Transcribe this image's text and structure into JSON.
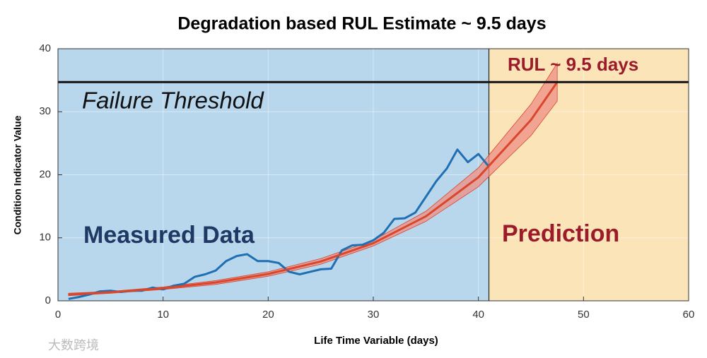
{
  "chart_data": {
    "type": "line",
    "title": "Degradation based RUL Estimate ~ 9.5 days",
    "x_label": "Life Time Variable (days)",
    "y_label": "Condition Indicator Value",
    "x": [
      1,
      2,
      3,
      4,
      5,
      6,
      7,
      8,
      9,
      10,
      11,
      12,
      13,
      14,
      15,
      16,
      17,
      18,
      19,
      20,
      21,
      22,
      23,
      24,
      25,
      26,
      27,
      28,
      29,
      30,
      31,
      32,
      33,
      34,
      35,
      36,
      37,
      38,
      39,
      40,
      41
    ],
    "values": [
      0.3,
      0.6,
      1.0,
      1.5,
      1.6,
      1.4,
      1.6,
      1.6,
      2.1,
      1.8,
      2.4,
      2.7,
      3.8,
      4.2,
      4.8,
      6.3,
      7.1,
      7.4,
      6.3,
      6.3,
      6.0,
      4.6,
      4.2,
      4.6,
      5.0,
      5.1,
      8.0,
      8.8,
      8.9,
      9.6,
      10.8,
      13.0,
      13.1,
      14.0,
      16.5,
      19.0,
      21.0,
      24.0,
      22.0,
      23.3,
      21.3
    ],
    "color": "#1f6fb2",
    "fit_x": [
      1,
      5,
      10,
      15,
      20,
      25,
      30,
      35,
      40,
      45,
      47.5
    ],
    "fit_values": [
      1.0,
      1.36,
      1.99,
      2.91,
      4.26,
      6.24,
      9.14,
      13.4,
      19.6,
      28.7,
      34.7
    ],
    "band_lower": [
      0.8,
      1.2,
      1.8,
      2.6,
      3.9,
      5.8,
      8.7,
      12.6,
      18.1,
      26.2,
      31.7
    ],
    "band_upper": [
      1.2,
      1.5,
      2.2,
      3.2,
      4.6,
      6.7,
      9.6,
      14.2,
      21.1,
      31.2,
      37.7
    ],
    "fit_color": "#d9462b",
    "band_color": "#ef8f86",
    "threshold": 34.7,
    "threshold_label": "Failure Threshold",
    "prediction_start": 41,
    "measured_label": "Measured Data",
    "prediction_label": "Prediction",
    "rul_label": "RUL ~ 9.5 days",
    "measured_bg": "#b8d6ec",
    "prediction_bg": "#fbe4b8",
    "xlim": [
      0,
      60
    ],
    "xticks": [
      0,
      10,
      20,
      30,
      40,
      50,
      60
    ],
    "ylim": [
      0,
      40
    ],
    "yticks": [
      0,
      10,
      20,
      30,
      40
    ],
    "grid": true,
    "watermark": "大数跨境"
  }
}
